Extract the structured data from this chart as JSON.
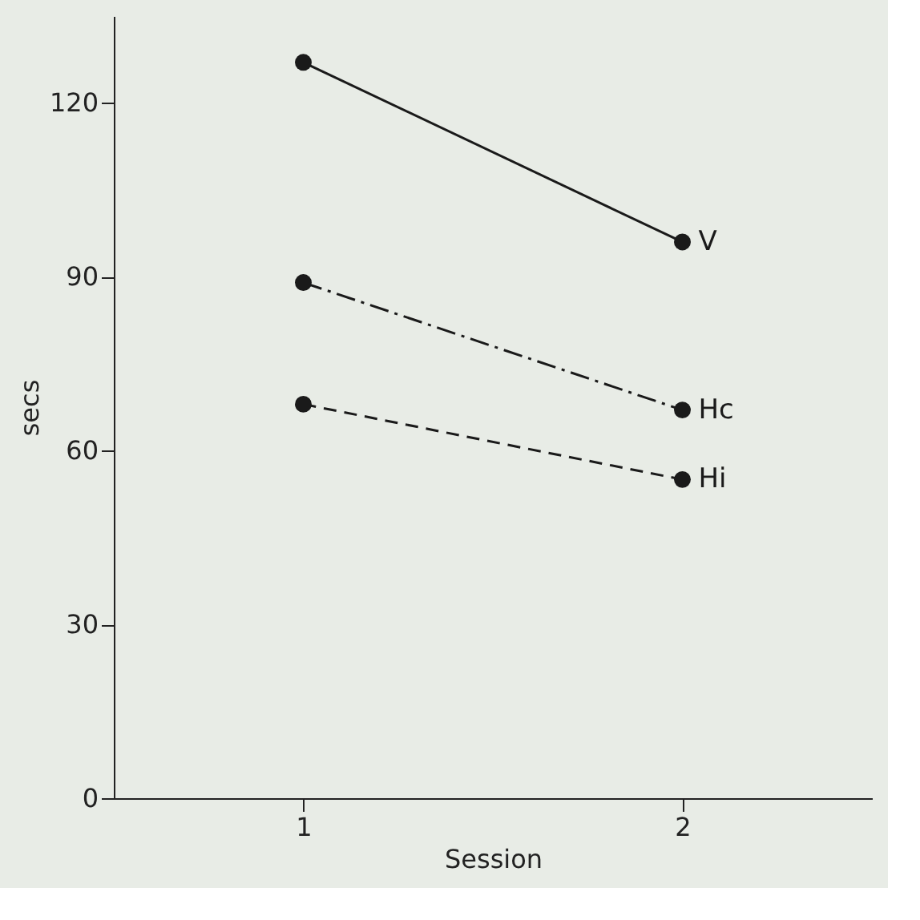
{
  "chart_data": {
    "type": "line",
    "xlabel": "Session",
    "ylabel": "secs",
    "categories": [
      "1",
      "2"
    ],
    "ylim": [
      0,
      135
    ],
    "yticks": [
      0,
      30,
      60,
      90,
      120
    ],
    "grid": false,
    "marker": "circle",
    "series": [
      {
        "name": "V",
        "color": "#1a1a1a",
        "line_style": "solid",
        "values": [
          127,
          96
        ]
      },
      {
        "name": "Hc",
        "color": "#1a1a1a",
        "line_style": "dashdot",
        "values": [
          89,
          67
        ]
      },
      {
        "name": "Hi",
        "color": "#1a1a1a",
        "line_style": "dashed",
        "values": [
          68,
          55
        ]
      }
    ]
  }
}
